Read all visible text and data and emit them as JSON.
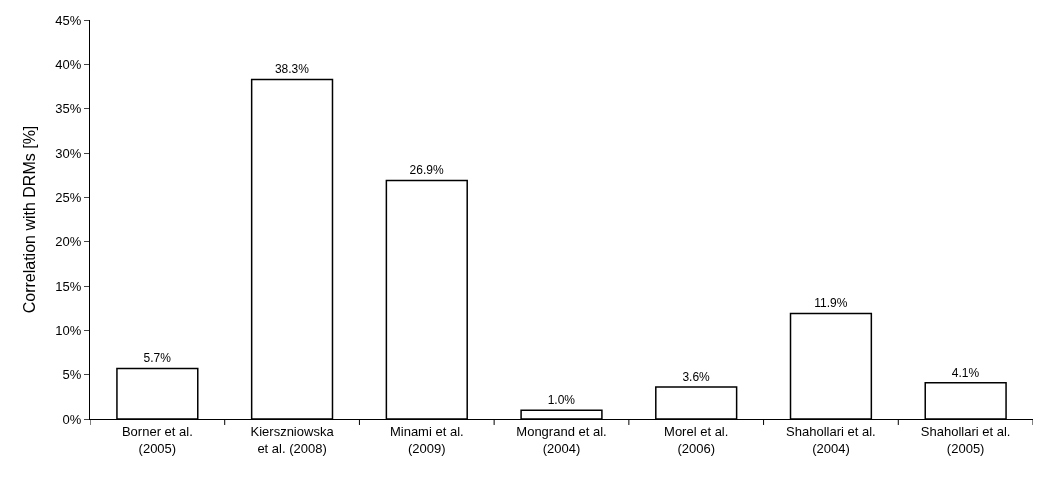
{
  "chart_data": {
    "type": "bar",
    "ylabel": "Correlation with DRMs [%]",
    "categories": [
      "Borner et al.\n(2005)",
      "Kierszniowska\net al. (2008)",
      "Minami et al.\n(2009)",
      "Mongrand et al.\n(2004)",
      "Morel et al.\n(2006)",
      "Shahollari et al.\n(2004)",
      "Shahollari et al.\n(2005)"
    ],
    "values": [
      5.7,
      38.3,
      26.9,
      1.0,
      3.6,
      11.9,
      4.1
    ],
    "value_labels": [
      "5.7%",
      "38.3%",
      "26.9%",
      "1.0%",
      "3.6%",
      "11.9%",
      "4.1%"
    ],
    "color": "#ffffff",
    "ylim": [
      0,
      45
    ],
    "yticks": [
      {
        "value": 0,
        "label": "0%"
      },
      {
        "value": 5,
        "label": "5%"
      },
      {
        "value": 10,
        "label": "10%"
      },
      {
        "value": 15,
        "label": "15%"
      },
      {
        "value": 20,
        "label": "20%"
      },
      {
        "value": 25,
        "label": "25%"
      },
      {
        "value": 30,
        "label": "30%"
      },
      {
        "value": 35,
        "label": "35%"
      },
      {
        "value": 40,
        "label": "40%"
      },
      {
        "value": 45,
        "label": "45%"
      }
    ]
  }
}
